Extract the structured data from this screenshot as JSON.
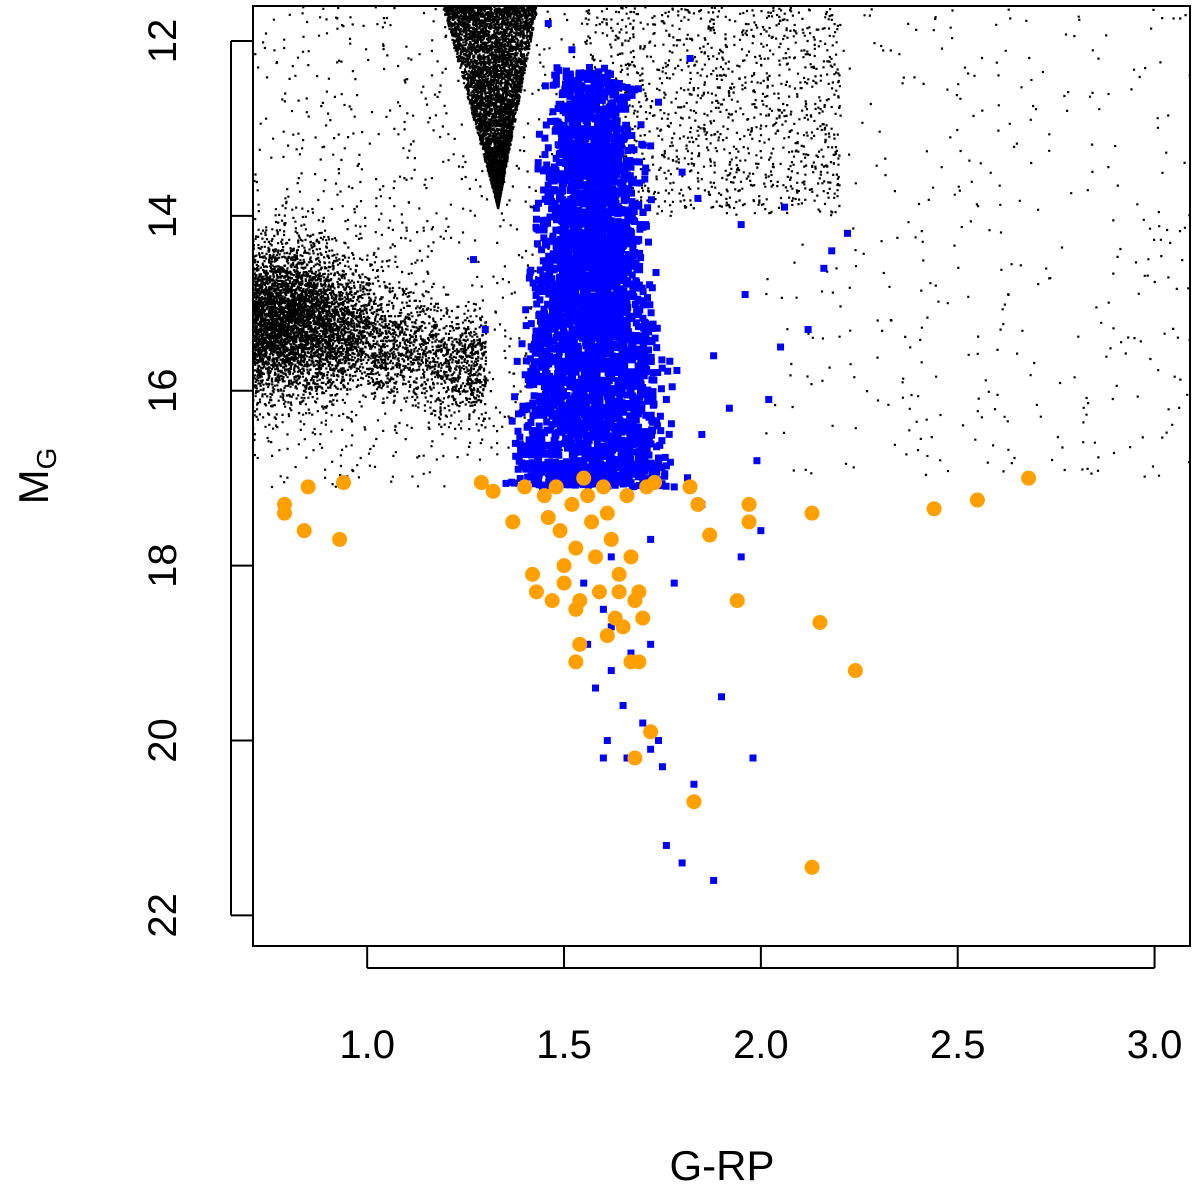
{
  "chart_data": {
    "type": "scatter",
    "title": "",
    "xlabel": "G-RP",
    "ylabel": {
      "main": "M",
      "subscript": "G"
    },
    "xlim": [
      0.71,
      3.09
    ],
    "ylim": [
      11.6,
      22.35
    ],
    "y_inverted": true,
    "grid": false,
    "legend": "none",
    "x_ticks": [
      1.0,
      1.5,
      2.0,
      2.5,
      3.0
    ],
    "x_tick_labels": [
      "1.0",
      "1.5",
      "2.0",
      "2.5",
      "3.0"
    ],
    "y_ticks": [
      12,
      14,
      16,
      18,
      20,
      22
    ],
    "y_tick_labels": [
      "12",
      "14",
      "16",
      "18",
      "20",
      "22"
    ],
    "series": [
      {
        "marker": "dot",
        "color": "#000000",
        "regions": [
          {
            "shape": "wedge",
            "apex": [
              1.33,
              13.9
            ],
            "top_x_range": [
              1.19,
              1.43
            ],
            "top_y": 11.6,
            "density": "saturated"
          },
          {
            "shape": "band",
            "x_range": [
              0.71,
              1.3
            ],
            "y_center_at": [
              [
                0.71,
                15.1
              ],
              [
                1.05,
                15.45
              ],
              [
                1.3,
                15.75
              ]
            ],
            "width": 0.9,
            "density": "high"
          },
          {
            "shape": "blob",
            "center": [
              0.76,
              15.2
            ],
            "radius": [
              0.12,
              0.9
            ],
            "density": "saturated"
          },
          {
            "shape": "cloud",
            "x_range": [
              0.71,
              1.55
            ],
            "y_range": [
              11.6,
              17.1
            ],
            "density": "low"
          },
          {
            "shape": "cloud",
            "x_range": [
              1.55,
              2.2
            ],
            "y_range": [
              11.6,
              14.0
            ],
            "density": "medium"
          },
          {
            "shape": "cloud",
            "x_range": [
              2.0,
              3.09
            ],
            "y_range": [
              11.6,
              17.0
            ],
            "density": "sparse"
          }
        ]
      },
      {
        "marker": "square",
        "color": "#0000ff",
        "core": {
          "center": [
            1.57,
            15.3
          ],
          "x_range": [
            1.4,
            1.75
          ],
          "y_range": [
            12.3,
            17.1
          ]
        },
        "points": [
          [
            1.46,
            11.8
          ],
          [
            1.52,
            12.1
          ],
          [
            1.82,
            12.2
          ],
          [
            1.74,
            12.7
          ],
          [
            1.72,
            13.2
          ],
          [
            1.8,
            13.5
          ],
          [
            1.84,
            13.8
          ],
          [
            1.95,
            14.1
          ],
          [
            2.06,
            13.9
          ],
          [
            2.18,
            14.4
          ],
          [
            2.16,
            14.6
          ],
          [
            2.22,
            14.2
          ],
          [
            1.27,
            14.5
          ],
          [
            1.3,
            15.3
          ],
          [
            1.96,
            14.9
          ],
          [
            2.12,
            15.3
          ],
          [
            1.88,
            15.6
          ],
          [
            2.05,
            15.5
          ],
          [
            1.76,
            16.1
          ],
          [
            1.92,
            16.2
          ],
          [
            2.02,
            16.1
          ],
          [
            1.85,
            16.5
          ],
          [
            1.99,
            16.8
          ],
          [
            1.78,
            17.1
          ],
          [
            1.85,
            17.3
          ],
          [
            2.0,
            17.6
          ],
          [
            1.95,
            17.9
          ],
          [
            1.72,
            17.7
          ],
          [
            1.78,
            18.2
          ],
          [
            1.6,
            18.5
          ],
          [
            1.62,
            18.7
          ],
          [
            1.56,
            18.9
          ],
          [
            1.67,
            19.0
          ],
          [
            1.72,
            18.9
          ],
          [
            1.62,
            19.2
          ],
          [
            1.58,
            19.4
          ],
          [
            1.65,
            19.6
          ],
          [
            1.7,
            19.8
          ],
          [
            1.61,
            20.0
          ],
          [
            1.72,
            20.1
          ],
          [
            1.74,
            20.0
          ],
          [
            1.6,
            20.2
          ],
          [
            1.66,
            20.2
          ],
          [
            1.75,
            20.3
          ],
          [
            1.83,
            20.5
          ],
          [
            1.9,
            19.5
          ],
          [
            1.98,
            20.2
          ],
          [
            1.76,
            21.2
          ],
          [
            1.8,
            21.4
          ],
          [
            1.88,
            21.6
          ],
          [
            1.55,
            18.2
          ],
          [
            1.62,
            17.9
          ]
        ]
      },
      {
        "marker": "circle",
        "color": "#ffa000",
        "points": [
          [
            0.79,
            17.3
          ],
          [
            0.79,
            17.4
          ],
          [
            0.85,
            17.1
          ],
          [
            0.84,
            17.6
          ],
          [
            0.93,
            17.7
          ],
          [
            0.94,
            17.05
          ],
          [
            1.29,
            17.05
          ],
          [
            1.32,
            17.15
          ],
          [
            1.37,
            17.5
          ],
          [
            1.4,
            17.1
          ],
          [
            1.42,
            18.1
          ],
          [
            1.43,
            18.3
          ],
          [
            1.45,
            17.2
          ],
          [
            1.46,
            17.45
          ],
          [
            1.48,
            17.1
          ],
          [
            1.49,
            17.6
          ],
          [
            1.5,
            18.0
          ],
          [
            1.5,
            18.2
          ],
          [
            1.52,
            17.3
          ],
          [
            1.53,
            17.8
          ],
          [
            1.54,
            18.4
          ],
          [
            1.55,
            17.0
          ],
          [
            1.56,
            17.2
          ],
          [
            1.57,
            17.5
          ],
          [
            1.58,
            17.9
          ],
          [
            1.59,
            18.3
          ],
          [
            1.6,
            17.1
          ],
          [
            1.61,
            17.4
          ],
          [
            1.62,
            17.7
          ],
          [
            1.63,
            18.6
          ],
          [
            1.64,
            18.1
          ],
          [
            1.65,
            18.7
          ],
          [
            1.66,
            17.2
          ],
          [
            1.67,
            17.9
          ],
          [
            1.68,
            18.4
          ],
          [
            1.7,
            18.6
          ],
          [
            1.71,
            17.1
          ],
          [
            1.73,
            17.05
          ],
          [
            1.69,
            19.1
          ],
          [
            1.53,
            18.5
          ],
          [
            1.47,
            18.4
          ],
          [
            1.54,
            18.9
          ],
          [
            1.53,
            19.1
          ],
          [
            1.61,
            18.8
          ],
          [
            1.64,
            18.3
          ],
          [
            1.67,
            19.1
          ],
          [
            1.69,
            18.3
          ],
          [
            1.72,
            19.9
          ],
          [
            1.68,
            20.2
          ],
          [
            1.82,
            17.1
          ],
          [
            1.84,
            17.3
          ],
          [
            1.87,
            17.65
          ],
          [
            1.97,
            17.3
          ],
          [
            1.97,
            17.5
          ],
          [
            1.94,
            18.4
          ],
          [
            2.13,
            17.4
          ],
          [
            2.15,
            18.65
          ],
          [
            2.24,
            19.2
          ],
          [
            1.83,
            20.7
          ],
          [
            2.13,
            21.45
          ],
          [
            2.44,
            17.35
          ],
          [
            2.55,
            17.25
          ],
          [
            2.68,
            17.0
          ]
        ]
      }
    ]
  }
}
